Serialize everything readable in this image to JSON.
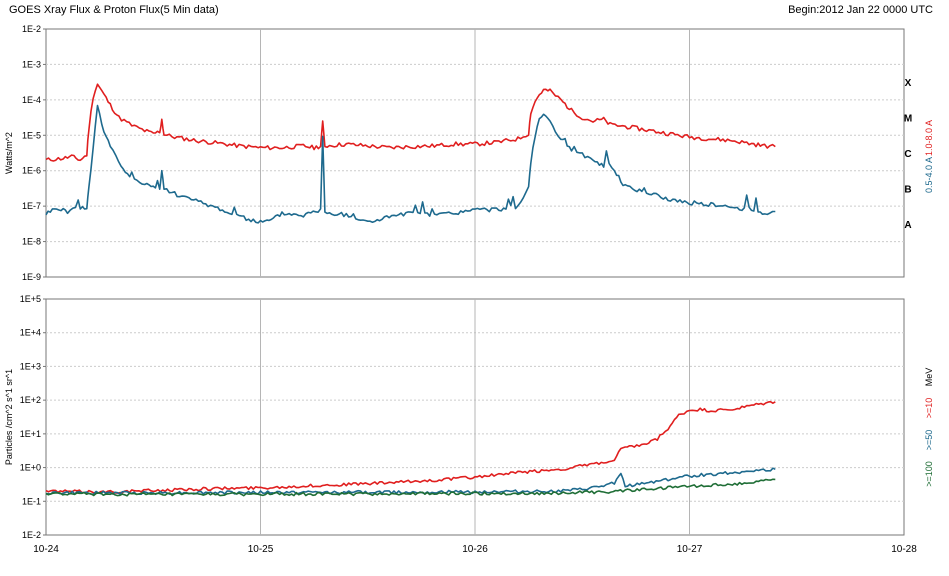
{
  "header": {
    "title": "GOES Xray Flux & Proton Flux(5 Min data)",
    "begin": "Begin:2012 Jan 22 0000 UTC"
  },
  "colors": {
    "red": "#e01f1f",
    "blue": "#1e6a8e",
    "green": "#1f6e36",
    "grid": "#b5b5b5",
    "dotted": "#cccccc"
  },
  "x_tick_labels": [
    "10-24",
    "10-25",
    "10-26",
    "10-27",
    "10-28"
  ],
  "chart_data": [
    {
      "type": "line",
      "title": "GOES Xray Flux",
      "ylabel": "Watts/m^2",
      "yscale": "log",
      "ylim_exp": [
        -9,
        -2
      ],
      "y_tick_labels": [
        "1E-9",
        "1E-8",
        "1E-7",
        "1E-6",
        "1E-5",
        "1E-4",
        "1E-3",
        "1E-2"
      ],
      "xlim_days": [
        0,
        4
      ],
      "flare_classes": [
        {
          "label": "X",
          "exp": -3.5
        },
        {
          "label": "M",
          "exp": -4.5
        },
        {
          "label": "C",
          "exp": -5.5
        },
        {
          "label": "B",
          "exp": -6.5
        },
        {
          "label": "A",
          "exp": -7.5
        }
      ],
      "series": [
        {
          "name": "1.0-8.0 A",
          "color_key": "red",
          "points": [
            [
              0,
              -5.7
            ],
            [
              0.08,
              -5.65
            ],
            [
              0.12,
              -5.6
            ],
            [
              0.16,
              -5.7
            ],
            [
              0.19,
              -5.55
            ],
            [
              0.2,
              -4.8
            ],
            [
              0.22,
              -3.9
            ],
            [
              0.24,
              -3.55
            ],
            [
              0.27,
              -3.85
            ],
            [
              0.3,
              -4.15
            ],
            [
              0.34,
              -4.5
            ],
            [
              0.4,
              -4.72
            ],
            [
              0.46,
              -4.87
            ],
            [
              0.5,
              -4.95
            ],
            [
              0.53,
              -4.9
            ],
            [
              0.54,
              -4.55
            ],
            [
              0.55,
              -4.98
            ],
            [
              0.6,
              -5.05
            ],
            [
              0.7,
              -5.15
            ],
            [
              0.8,
              -5.22
            ],
            [
              0.9,
              -5.3
            ],
            [
              1.0,
              -5.35
            ],
            [
              1.1,
              -5.35
            ],
            [
              1.2,
              -5.3
            ],
            [
              1.25,
              -5.35
            ],
            [
              1.28,
              -5.3
            ],
            [
              1.29,
              -4.65
            ],
            [
              1.3,
              -5.3
            ],
            [
              1.4,
              -5.25
            ],
            [
              1.5,
              -5.3
            ],
            [
              1.6,
              -5.35
            ],
            [
              1.7,
              -5.32
            ],
            [
              1.8,
              -5.3
            ],
            [
              1.9,
              -5.25
            ],
            [
              2.0,
              -5.25
            ],
            [
              2.1,
              -5.2
            ],
            [
              2.2,
              -5.1
            ],
            [
              2.25,
              -4.95
            ],
            [
              2.26,
              -4.35
            ],
            [
              2.28,
              -4.05
            ],
            [
              2.3,
              -3.85
            ],
            [
              2.32,
              -3.72
            ],
            [
              2.35,
              -3.75
            ],
            [
              2.4,
              -4.0
            ],
            [
              2.45,
              -4.3
            ],
            [
              2.5,
              -4.5
            ],
            [
              2.55,
              -4.6
            ],
            [
              2.6,
              -4.55
            ],
            [
              2.63,
              -4.7
            ],
            [
              2.7,
              -4.75
            ],
            [
              2.8,
              -4.85
            ],
            [
              2.9,
              -4.95
            ],
            [
              3.0,
              -5.05
            ],
            [
              3.1,
              -5.1
            ],
            [
              3.2,
              -5.15
            ],
            [
              3.3,
              -5.25
            ],
            [
              3.35,
              -5.3
            ],
            [
              3.4,
              -5.32
            ]
          ]
        },
        {
          "name": "0.5-4.0 A",
          "color_key": "blue",
          "points": [
            [
              0,
              -7.2
            ],
            [
              0.05,
              -7.05
            ],
            [
              0.1,
              -7.15
            ],
            [
              0.15,
              -7.0
            ],
            [
              0.19,
              -7.1
            ],
            [
              0.2,
              -6.5
            ],
            [
              0.22,
              -5.3
            ],
            [
              0.24,
              -4.15
            ],
            [
              0.26,
              -4.7
            ],
            [
              0.3,
              -5.3
            ],
            [
              0.35,
              -5.9
            ],
            [
              0.4,
              -6.2
            ],
            [
              0.46,
              -6.35
            ],
            [
              0.5,
              -6.45
            ],
            [
              0.53,
              -6.5
            ],
            [
              0.54,
              -6.0
            ],
            [
              0.55,
              -6.5
            ],
            [
              0.6,
              -6.65
            ],
            [
              0.7,
              -6.85
            ],
            [
              0.8,
              -7.05
            ],
            [
              0.9,
              -7.3
            ],
            [
              1.0,
              -7.45
            ],
            [
              1.05,
              -7.4
            ],
            [
              1.1,
              -7.2
            ],
            [
              1.2,
              -7.25
            ],
            [
              1.28,
              -7.1
            ],
            [
              1.29,
              -5.0
            ],
            [
              1.3,
              -7.2
            ],
            [
              1.4,
              -7.25
            ],
            [
              1.5,
              -7.45
            ],
            [
              1.6,
              -7.3
            ],
            [
              1.7,
              -7.2
            ],
            [
              1.8,
              -7.25
            ],
            [
              1.9,
              -7.2
            ],
            [
              2.0,
              -7.1
            ],
            [
              2.1,
              -7.1
            ],
            [
              2.2,
              -7.0
            ],
            [
              2.25,
              -6.5
            ],
            [
              2.26,
              -5.8
            ],
            [
              2.28,
              -5.0
            ],
            [
              2.3,
              -4.6
            ],
            [
              2.32,
              -4.45
            ],
            [
              2.35,
              -4.65
            ],
            [
              2.4,
              -5.1
            ],
            [
              2.45,
              -5.45
            ],
            [
              2.5,
              -5.55
            ],
            [
              2.55,
              -5.7
            ],
            [
              2.6,
              -5.85
            ],
            [
              2.65,
              -6.0
            ],
            [
              2.7,
              -6.45
            ],
            [
              2.8,
              -6.6
            ],
            [
              2.9,
              -6.8
            ],
            [
              3.0,
              -6.9
            ],
            [
              3.1,
              -6.95
            ],
            [
              3.2,
              -7.05
            ],
            [
              3.3,
              -7.1
            ],
            [
              3.35,
              -7.2
            ],
            [
              3.4,
              -7.15
            ]
          ]
        }
      ]
    },
    {
      "type": "line",
      "title": "GOES Proton Flux",
      "ylabel": "Particles /cm^2 s^1 sr^1",
      "yscale": "log",
      "ylim_exp": [
        -2,
        5
      ],
      "y_tick_labels": [
        "1E-2",
        "1E-1",
        "1E+0",
        "1E+1",
        "1E+2",
        "1E+3",
        "1E+4",
        "1E+5"
      ],
      "xlim_days": [
        0,
        4
      ],
      "unit_label": "MeV",
      "series": [
        {
          "name": ">=10",
          "color_key": "red",
          "points": [
            [
              0,
              -0.7
            ],
            [
              0.3,
              -0.72
            ],
            [
              0.5,
              -0.68
            ],
            [
              0.8,
              -0.62
            ],
            [
              1.0,
              -0.6
            ],
            [
              1.2,
              -0.55
            ],
            [
              1.4,
              -0.5
            ],
            [
              1.6,
              -0.45
            ],
            [
              1.8,
              -0.38
            ],
            [
              2.0,
              -0.28
            ],
            [
              2.2,
              -0.15
            ],
            [
              2.4,
              -0.05
            ],
            [
              2.6,
              0.15
            ],
            [
              2.65,
              0.2
            ],
            [
              2.68,
              0.55
            ],
            [
              2.72,
              0.6
            ],
            [
              2.8,
              0.7
            ],
            [
              2.85,
              0.85
            ],
            [
              2.9,
              1.15
            ],
            [
              2.95,
              1.55
            ],
            [
              3.0,
              1.7
            ],
            [
              3.05,
              1.72
            ],
            [
              3.1,
              1.68
            ],
            [
              3.2,
              1.72
            ],
            [
              3.3,
              1.85
            ],
            [
              3.4,
              1.95
            ]
          ]
        },
        {
          "name": ">=50",
          "color_key": "blue",
          "points": [
            [
              0,
              -0.75
            ],
            [
              0.5,
              -0.75
            ],
            [
              1.0,
              -0.74
            ],
            [
              1.5,
              -0.73
            ],
            [
              2.0,
              -0.72
            ],
            [
              2.4,
              -0.7
            ],
            [
              2.5,
              -0.65
            ],
            [
              2.6,
              -0.55
            ],
            [
              2.65,
              -0.45
            ],
            [
              2.68,
              -0.2
            ],
            [
              2.7,
              -0.55
            ],
            [
              2.8,
              -0.45
            ],
            [
              2.9,
              -0.35
            ],
            [
              3.0,
              -0.25
            ],
            [
              3.1,
              -0.2
            ],
            [
              3.2,
              -0.15
            ],
            [
              3.3,
              -0.1
            ],
            [
              3.4,
              -0.05
            ]
          ]
        },
        {
          "name": ">=100",
          "color_key": "green",
          "points": [
            [
              0,
              -0.78
            ],
            [
              0.5,
              -0.8
            ],
            [
              1.0,
              -0.79
            ],
            [
              1.5,
              -0.78
            ],
            [
              2.0,
              -0.77
            ],
            [
              2.4,
              -0.76
            ],
            [
              2.6,
              -0.72
            ],
            [
              2.8,
              -0.65
            ],
            [
              3.0,
              -0.55
            ],
            [
              3.2,
              -0.5
            ],
            [
              3.4,
              -0.35
            ]
          ]
        }
      ]
    }
  ]
}
